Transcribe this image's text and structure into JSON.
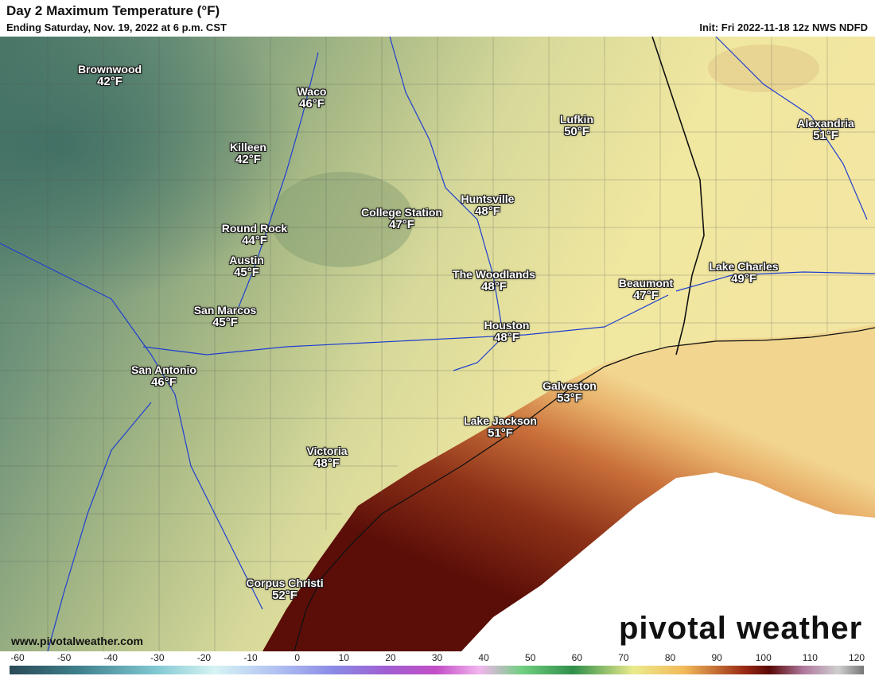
{
  "header": {
    "title": "Day 2 Maximum Temperature (°F)",
    "subtitle": "Ending Saturday, Nov. 19, 2022 at 6 p.m. CST",
    "init": "Init: Fri 2022-11-18 12z NWS NDFD"
  },
  "cities": [
    {
      "name": "Brownwood",
      "temp": "42°F"
    },
    {
      "name": "Waco",
      "temp": "46°F"
    },
    {
      "name": "Killeen",
      "temp": "42°F"
    },
    {
      "name": "Lufkin",
      "temp": "50°F"
    },
    {
      "name": "Alexandria",
      "temp": "51°F"
    },
    {
      "name": "College Station",
      "temp": "47°F"
    },
    {
      "name": "Huntsville",
      "temp": "48°F"
    },
    {
      "name": "Round Rock",
      "temp": "44°F"
    },
    {
      "name": "Austin",
      "temp": "45°F"
    },
    {
      "name": "The Woodlands",
      "temp": "48°F"
    },
    {
      "name": "Lake Charles",
      "temp": "49°F"
    },
    {
      "name": "Beaumont",
      "temp": "47°F"
    },
    {
      "name": "San Marcos",
      "temp": "45°F"
    },
    {
      "name": "Houston",
      "temp": "48°F"
    },
    {
      "name": "San Antonio",
      "temp": "46°F"
    },
    {
      "name": "Galveston",
      "temp": "53°F"
    },
    {
      "name": "Lake Jackson",
      "temp": "51°F"
    },
    {
      "name": "Victoria",
      "temp": "48°F"
    },
    {
      "name": "Corpus Christi",
      "temp": "52°F"
    }
  ],
  "footer": {
    "website": "www.pivotalweather.com",
    "brand": "pivotal weather"
  },
  "color_scale": {
    "ticks": [
      "-60",
      "-50",
      "-40",
      "-30",
      "-20",
      "-10",
      "0",
      "10",
      "20",
      "30",
      "40",
      "50",
      "60",
      "70",
      "80",
      "90",
      "100",
      "110",
      "120"
    ],
    "colors": {
      "cold": "#4e7f6f",
      "mild": "#c9cf8a",
      "warm": "#f1e9a0",
      "gulf_warm": "#c46a3c",
      "gulf_hot": "#6e1a10",
      "no_data": "#ffffff"
    }
  }
}
